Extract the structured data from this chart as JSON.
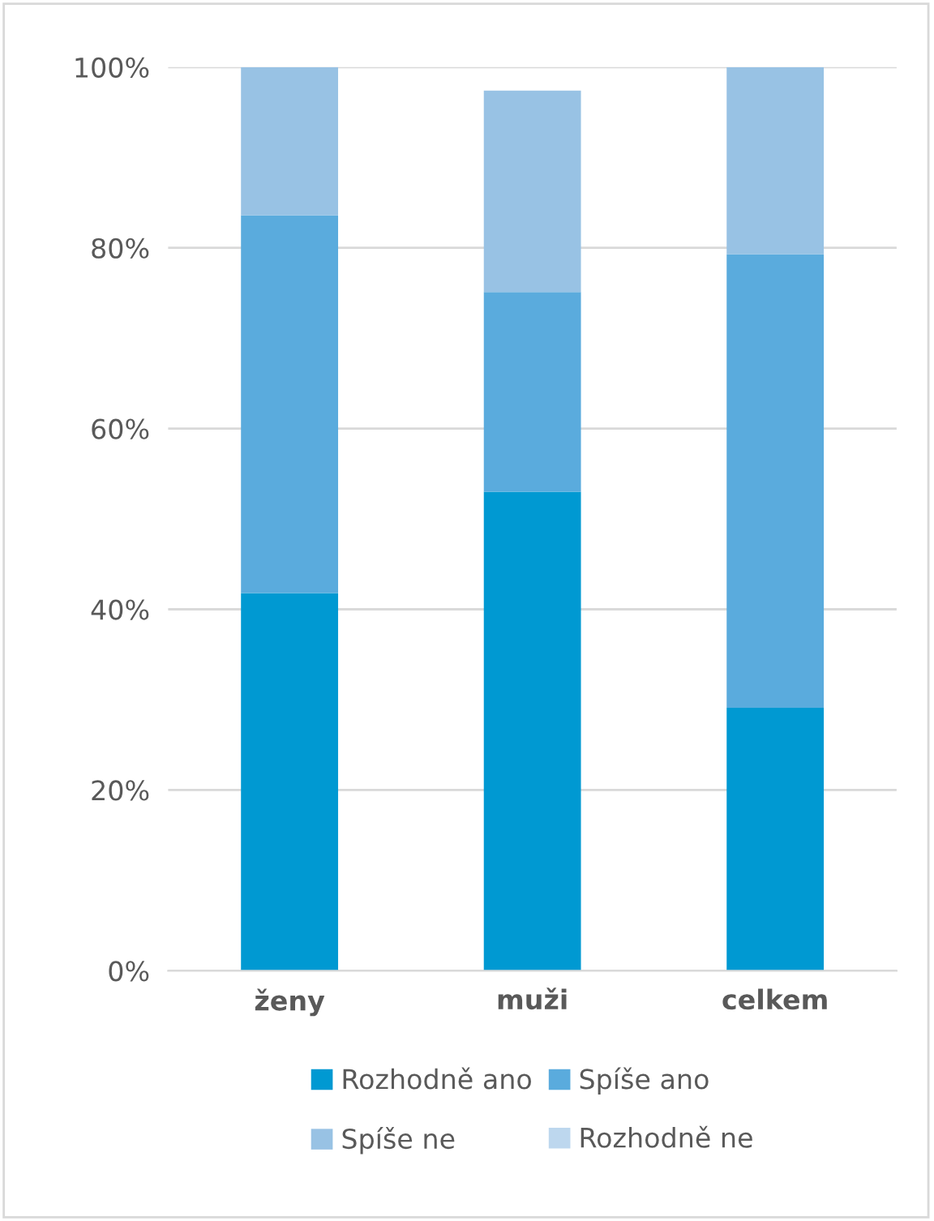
{
  "chart_data": {
    "type": "bar",
    "stacked": true,
    "categories": [
      "ženy",
      "muži",
      "celkem"
    ],
    "series": [
      {
        "name": "Rozhodně ano",
        "color": "#0099d2",
        "values": [
          41.8,
          53.0,
          29.1
        ]
      },
      {
        "name": "Spíše ano",
        "color": "#5aabdd",
        "values": [
          41.8,
          22.1,
          50.2
        ]
      },
      {
        "name": "Spíše ne",
        "color": "#98c2e4",
        "values": [
          16.4,
          22.3,
          20.7
        ]
      },
      {
        "name": "Rozhodně ne",
        "color": "#bdd7ee",
        "values": [
          0,
          0,
          0
        ]
      }
    ],
    "ylim": [
      0,
      100
    ],
    "yticks": [
      {
        "value": 0,
        "label": "0%"
      },
      {
        "value": 20,
        "label": "20%"
      },
      {
        "value": 40,
        "label": "40%"
      },
      {
        "value": 60,
        "label": "60%"
      },
      {
        "value": 80,
        "label": "80%"
      },
      {
        "value": 100,
        "label": "100%"
      }
    ],
    "grid": "y",
    "legend": "bottom"
  }
}
